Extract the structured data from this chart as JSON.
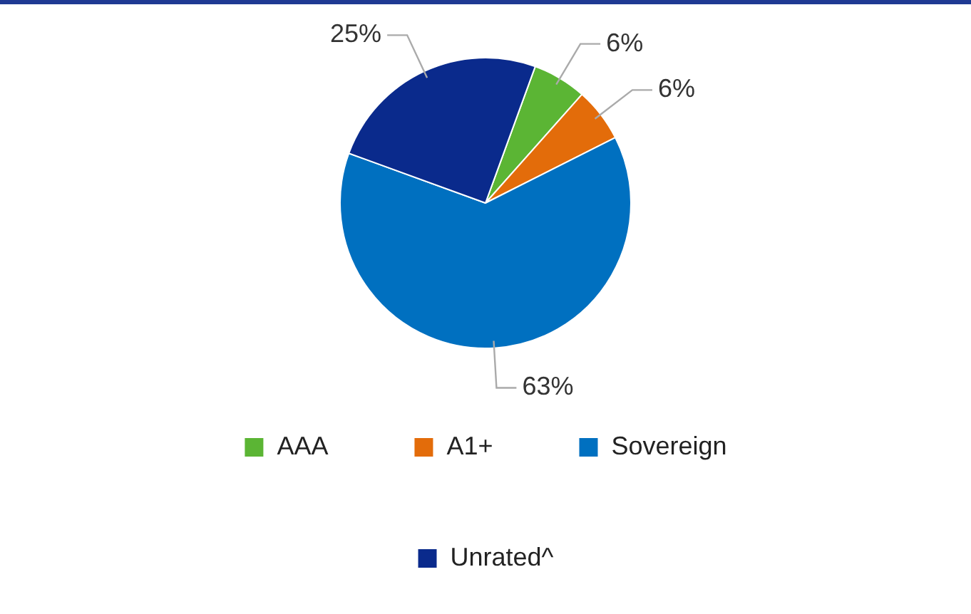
{
  "chart_data": {
    "type": "pie",
    "categories": [
      "AAA",
      "A1+",
      "Sovereign",
      "Unrated^"
    ],
    "values": [
      6,
      6,
      63,
      25
    ],
    "colors": [
      "#5bb534",
      "#e36c0a",
      "#0070c0",
      "#0a2a8c"
    ],
    "value_labels": [
      "6%",
      "6%",
      "63%",
      "25%"
    ],
    "legend": "bottom"
  }
}
